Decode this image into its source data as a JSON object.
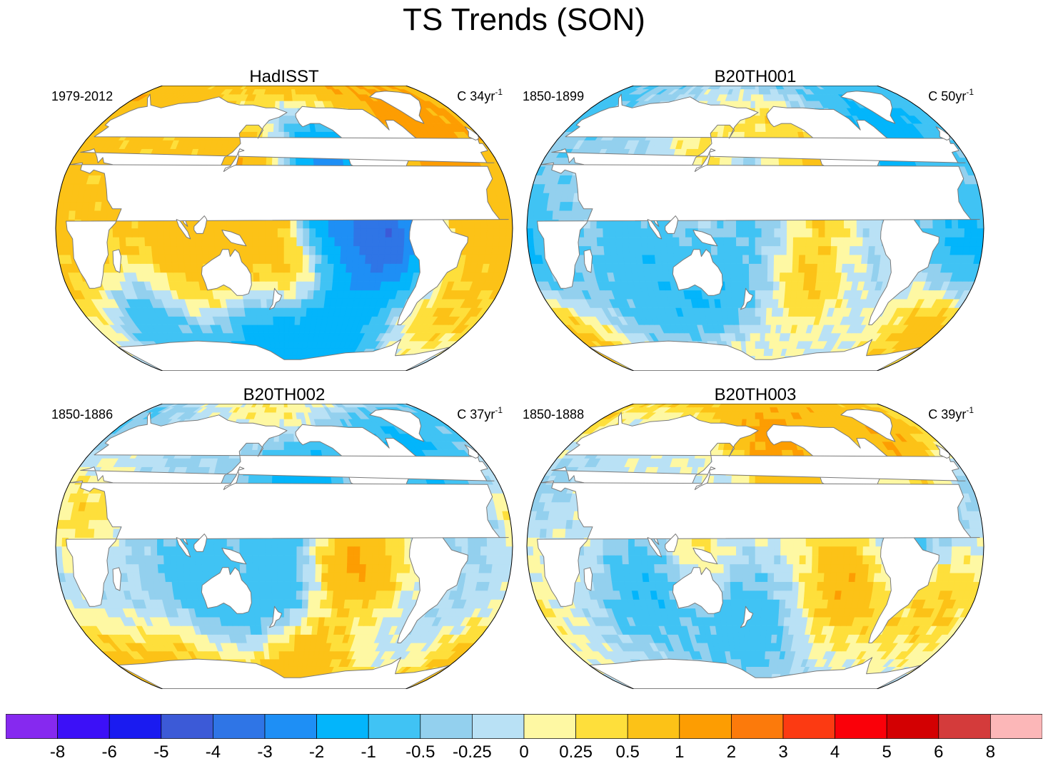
{
  "figure": {
    "title": "TS Trends (SON)"
  },
  "chart_data": {
    "type": "heatmap",
    "projection": "Robinson (Pacific-centered global map)",
    "variable": "TS",
    "season": "SON",
    "units_label": "C",
    "panels": [
      {
        "title": "HadISST",
        "period": "1979-2012",
        "units_prefix": "C",
        "years": "34",
        "unit_suffix": "yr",
        "unit_exp": "-1",
        "pattern": {
          "base": 0.6,
          "anomalies": [
            {
              "lon": 180,
              "lat": 38,
              "value": 1.1
            },
            {
              "lon": 155,
              "lat": 20,
              "value": 0.9
            },
            {
              "lon": 175,
              "lat": -30,
              "value": 1.0
            },
            {
              "lon": 95,
              "lat": -15,
              "value": 0.8
            },
            {
              "lon": 310,
              "lat": 50,
              "value": 1.4
            },
            {
              "lon": 330,
              "lat": 15,
              "value": 0.9
            },
            {
              "lon": 240,
              "lat": 72,
              "value": 1.3
            },
            {
              "lon": 220,
              "lat": 15,
              "value": -1.8
            },
            {
              "lon": 255,
              "lat": -10,
              "value": -1.9
            },
            {
              "lon": 270,
              "lat": -2,
              "value": -1.5
            },
            {
              "lon": 210,
              "lat": 48,
              "value": -1.5
            },
            {
              "lon": 160,
              "lat": -60,
              "value": -1.1
            },
            {
              "lon": 230,
              "lat": -60,
              "value": -1.2
            },
            {
              "lon": 60,
              "lat": -55,
              "value": -0.8
            }
          ]
        }
      },
      {
        "title": "B20TH001",
        "period": "1850-1899",
        "units_prefix": "C",
        "years": "50",
        "unit_suffix": "yr",
        "unit_exp": "-1",
        "pattern": {
          "base": -0.35,
          "anomalies": [
            {
              "lon": 200,
              "lat": 48,
              "value": 0.5
            },
            {
              "lon": 235,
              "lat": 25,
              "value": 0.6
            },
            {
              "lon": 225,
              "lat": -30,
              "value": 0.5
            },
            {
              "lon": 330,
              "lat": -38,
              "value": 0.6
            },
            {
              "lon": 0,
              "lat": -65,
              "value": 0.5
            },
            {
              "lon": 160,
              "lat": -65,
              "value": 0.5
            },
            {
              "lon": 140,
              "lat": 40,
              "value": 0.4
            },
            {
              "lon": 345,
              "lat": -18,
              "value": -1.6
            },
            {
              "lon": 300,
              "lat": 55,
              "value": -1.5
            },
            {
              "lon": 150,
              "lat": -45,
              "value": -1.4
            },
            {
              "lon": 185,
              "lat": 30,
              "value": -1.1
            },
            {
              "lon": 90,
              "lat": -20,
              "value": -0.9
            }
          ]
        }
      },
      {
        "title": "B20TH002",
        "period": "1850-1886",
        "units_prefix": "C",
        "years": "37",
        "unit_suffix": "yr",
        "unit_exp": "-1",
        "pattern": {
          "base": -0.3,
          "anomalies": [
            {
              "lon": 195,
              "lat": 38,
              "value": -1.6
            },
            {
              "lon": 185,
              "lat": -28,
              "value": -1.3
            },
            {
              "lon": 300,
              "lat": 52,
              "value": -1.2
            },
            {
              "lon": 110,
              "lat": -18,
              "value": -0.9
            },
            {
              "lon": 215,
              "lat": -8,
              "value": 0.6
            },
            {
              "lon": 250,
              "lat": -8,
              "value": 0.7
            },
            {
              "lon": 200,
              "lat": -62,
              "value": 1.0
            },
            {
              "lon": 0,
              "lat": -65,
              "value": 0.5
            },
            {
              "lon": 80,
              "lat": -65,
              "value": 0.5
            },
            {
              "lon": 180,
              "lat": 75,
              "value": 0.5
            },
            {
              "lon": 20,
              "lat": 20,
              "value": 0.4
            }
          ]
        }
      },
      {
        "title": "B20TH003",
        "period": "1850-1888",
        "units_prefix": "C",
        "years": "39",
        "unit_suffix": "yr",
        "unit_exp": "-1",
        "pattern": {
          "base": -0.05,
          "anomalies": [
            {
              "lon": 200,
              "lat": 45,
              "value": 1.1
            },
            {
              "lon": 320,
              "lat": 55,
              "value": 1.4
            },
            {
              "lon": 255,
              "lat": -20,
              "value": 1.0
            },
            {
              "lon": 330,
              "lat": -30,
              "value": 0.6
            },
            {
              "lon": 140,
              "lat": 10,
              "value": 0.5
            },
            {
              "lon": 180,
              "lat": 75,
              "value": 0.6
            },
            {
              "lon": 90,
              "lat": -25,
              "value": -1.0
            },
            {
              "lon": 175,
              "lat": -45,
              "value": -0.9
            },
            {
              "lon": 300,
              "lat": 10,
              "value": -1.0
            },
            {
              "lon": 165,
              "lat": 30,
              "value": -0.7
            },
            {
              "lon": 350,
              "lat": 45,
              "value": -0.7
            }
          ]
        }
      }
    ],
    "colorbar": {
      "levels": [
        "-8",
        "-6",
        "-5",
        "-4",
        "-3",
        "-2",
        "-1",
        "-0.5",
        "-0.25",
        "0",
        "0.25",
        "0.5",
        "1",
        "2",
        "3",
        "4",
        "5",
        "6",
        "8"
      ],
      "level_values": [
        -8,
        -6,
        -5,
        -4,
        -3,
        -2,
        -1,
        -0.5,
        -0.25,
        0,
        0.25,
        0.5,
        1,
        2,
        3,
        4,
        5,
        6,
        8
      ],
      "colors": [
        "#8629ef",
        "#3c10f7",
        "#1a1bf0",
        "#3c5ad7",
        "#2f75e6",
        "#1e8ff5",
        "#03b5fb",
        "#40c3f4",
        "#93d0ee",
        "#b9e1f5",
        "#fef8a3",
        "#fedf3b",
        "#fcc217",
        "#fd9d02",
        "#fc7a0b",
        "#fc3a12",
        "#fa0009",
        "#d30002",
        "#d43b3b",
        "#fcb7b8"
      ]
    },
    "land_color": "#ffffff",
    "coastline_color": "#7a7a7a"
  }
}
